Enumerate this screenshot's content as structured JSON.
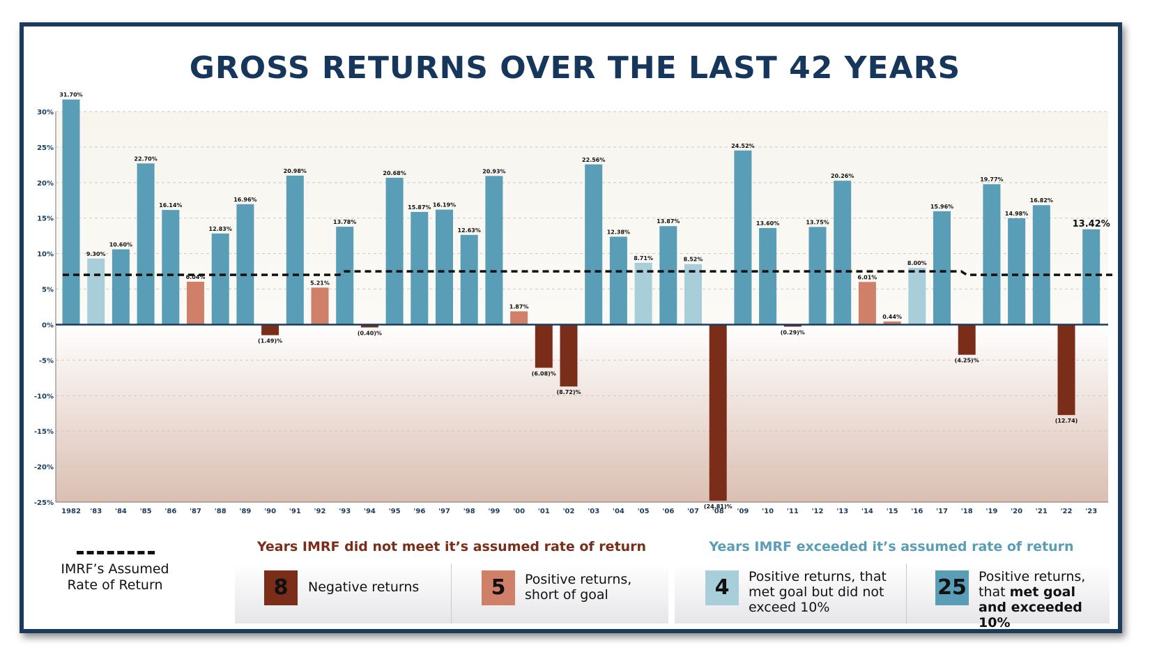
{
  "title": "GROSS RETURNS OVER THE LAST 42 YEARS",
  "colors": {
    "frame": "#1b3a5c",
    "title": "#16375b",
    "negative": "#7a2e1a",
    "short_of_goal": "#d07f68",
    "met_goal": "#a8ced9",
    "exceeded": "#5a9db6",
    "assumed_line": "#111111"
  },
  "chart_data": {
    "type": "bar",
    "title": "GROSS RETURNS OVER THE LAST 42 YEARS",
    "xlabel": "",
    "ylabel": "",
    "ylim": [
      -25,
      30
    ],
    "y_ticks": [
      "30%",
      "25%",
      "20%",
      "15%",
      "10%",
      "5%",
      "0%",
      "-5%",
      "-10%",
      "-15%",
      "-20%",
      "-25%"
    ],
    "y_tick_values": [
      30,
      25,
      20,
      15,
      10,
      5,
      0,
      -5,
      -10,
      -15,
      -20,
      -25
    ],
    "grid": "horizontal dashed",
    "categories": [
      "1982",
      "'83",
      "'84",
      "'85",
      "'86",
      "'87",
      "'88",
      "'89",
      "'90",
      "'91",
      "'92",
      "'93",
      "'94",
      "'95",
      "'96",
      "'97",
      "'98",
      "'99",
      "'00",
      "'01",
      "'02",
      "'03",
      "'04",
      "'05",
      "'06",
      "'07",
      "'08",
      "'09",
      "'10",
      "'11",
      "'12",
      "'13",
      "'14",
      "'15",
      "'16",
      "'17",
      "'18",
      "'19",
      "'20",
      "'21",
      "'22",
      "'23"
    ],
    "values": [
      31.7,
      9.3,
      10.6,
      22.7,
      16.14,
      6.04,
      12.83,
      16.96,
      -1.49,
      20.98,
      5.21,
      13.78,
      -0.4,
      20.68,
      15.87,
      16.19,
      12.63,
      20.93,
      1.87,
      -6.08,
      -8.72,
      22.56,
      12.38,
      8.71,
      13.87,
      8.52,
      -24.81,
      24.52,
      13.6,
      -0.29,
      13.75,
      20.26,
      6.01,
      0.44,
      8.0,
      15.96,
      -4.25,
      19.77,
      14.98,
      16.82,
      -12.74,
      13.42
    ],
    "data_labels": [
      "31.70%",
      "9.30%",
      "10.60%",
      "22.70%",
      "16.14%",
      "6.04%",
      "12.83%",
      "16.96%",
      "(1.49)%",
      "20.98%",
      "5.21%",
      "13.78%",
      "(0.40)%",
      "20.68%",
      "15.87%",
      "16.19%",
      "12.63%",
      "20.93%",
      "1.87%",
      "(6.08)%",
      "(8.72)%",
      "22.56%",
      "12.38%",
      "8.71%",
      "13.87%",
      "8.52%",
      "(24.81)%",
      "24.52%",
      "13.60%",
      "(0.29)%",
      "13.75%",
      "20.26%",
      "6.01%",
      "0.44%",
      "8.00%",
      "15.96%",
      "(4.25)%",
      "19.77%",
      "14.98%",
      "16.82%",
      "(12.74)",
      "13.42%"
    ],
    "categories_color": [
      "exceeded",
      "met_goal",
      "exceeded",
      "exceeded",
      "exceeded",
      "short_of_goal",
      "exceeded",
      "exceeded",
      "negative",
      "exceeded",
      "short_of_goal",
      "exceeded",
      "negative",
      "exceeded",
      "exceeded",
      "exceeded",
      "exceeded",
      "exceeded",
      "short_of_goal",
      "negative",
      "negative",
      "exceeded",
      "exceeded",
      "met_goal",
      "exceeded",
      "met_goal",
      "negative",
      "exceeded",
      "exceeded",
      "negative",
      "exceeded",
      "exceeded",
      "short_of_goal",
      "short_of_goal",
      "met_goal",
      "exceeded",
      "negative",
      "exceeded",
      "exceeded",
      "exceeded",
      "negative",
      "exceeded"
    ],
    "assumed_rate_line": {
      "name": "IMRF's Assumed Rate of Return",
      "segments": [
        {
          "from": "1982",
          "to": "'93",
          "value": 7.0
        },
        {
          "from": "'93",
          "to": "'18",
          "value": 7.5
        },
        {
          "from": "'18",
          "to": "'23",
          "value": 7.0
        }
      ]
    }
  },
  "legend": {
    "line_label": "IMRF’s Assumed Rate of Return",
    "did_not_meet_title": "Years IMRF did not meet it’s assumed rate of return",
    "exceeded_title": "Years IMRF exceeded it’s assumed rate of return",
    "negative": {
      "count": "8",
      "label": "Negative returns"
    },
    "short": {
      "count": "5",
      "label": "Positive returns, short of goal"
    },
    "met": {
      "count": "4",
      "label": "Positive returns, that met goal but did not exceed 10%"
    },
    "exceeded": {
      "count": "25",
      "label_plain": "Positive returns, that ",
      "label_bold": "met goal and exceeded 10%"
    }
  }
}
